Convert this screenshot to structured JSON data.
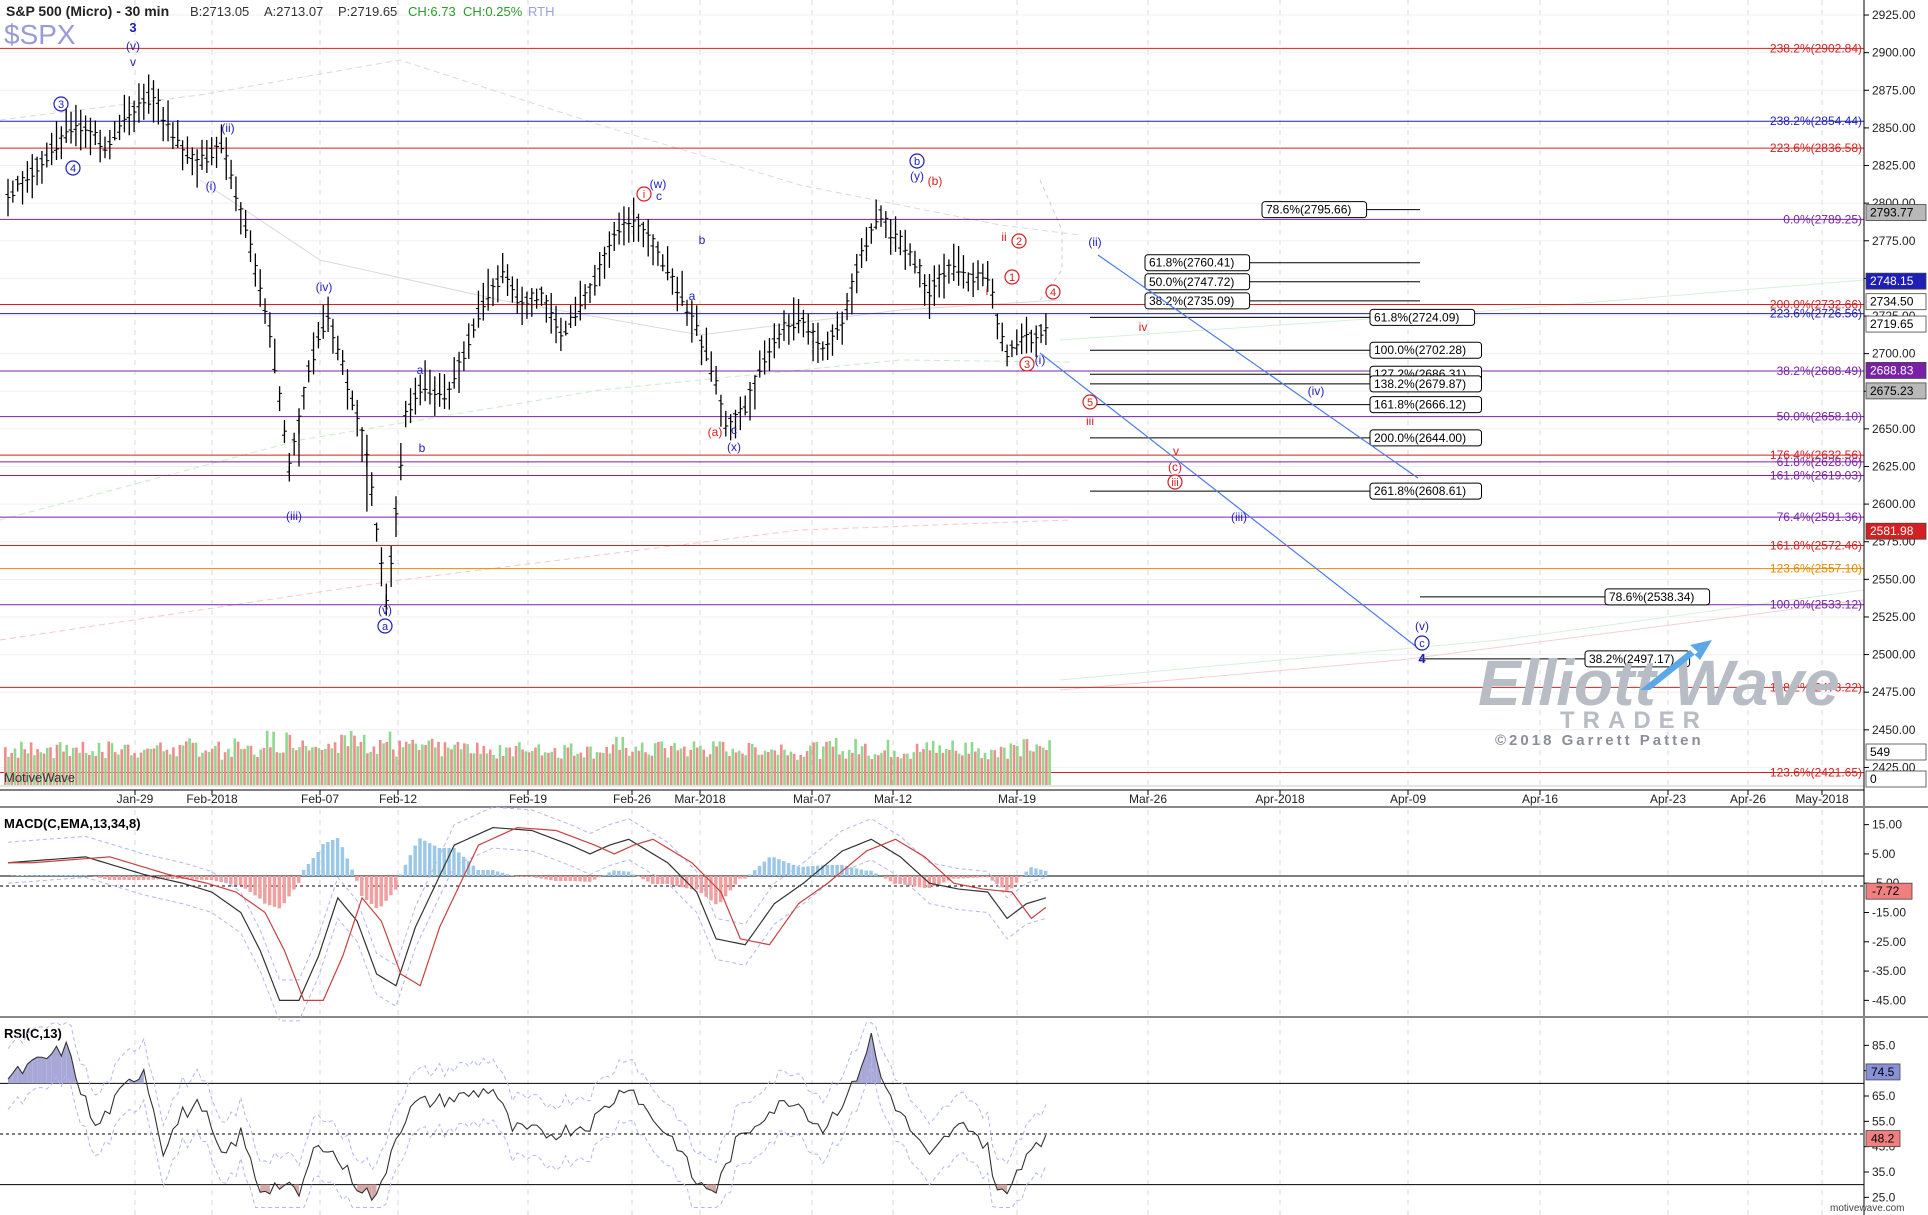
{
  "header": {
    "instrument": "S&P 500 (Micro) - 30 min",
    "bid": "B:2713.05",
    "ask": "A:2713.07",
    "price": "P:2719.65",
    "change": "CH:6.73",
    "change_pct": "CH:0.25%",
    "session": "RTH",
    "symbol": "$SPX"
  },
  "footer": {
    "provider": "MotiveWave",
    "site": "motivewave.com"
  },
  "watermark": {
    "brand_line1": "Elliott Wave",
    "brand_line2": "TRADER",
    "copyright": "©2018 Garrett Patten"
  },
  "colors": {
    "candle": "#000000",
    "blue": "#1f1fb8",
    "red": "#d42020",
    "purple": "#7a20a8",
    "orange": "#e88a00",
    "yellow": "#e8d000",
    "vol_red": "#f08c8c",
    "vol_green": "#90d890",
    "macd_up": "#9cc8e8",
    "macd_down": "#f0a0a0"
  },
  "chart_data": [
    {
      "type": "candlestick",
      "pane": "price",
      "ylim": [
        2410,
        2935
      ],
      "y_ticks": [
        "2925.00",
        "2900.00",
        "2875.00",
        "2850.00",
        "2825.00",
        "2800.00",
        "2775.00",
        "2750.00",
        "2725.00",
        "2700.00",
        "2675.00",
        "2650.00",
        "2625.00",
        "2600.00",
        "2575.00",
        "2550.00",
        "2525.00",
        "2500.00",
        "2475.00",
        "2450.00",
        "2425.00"
      ],
      "x_ticks": [
        "Jan-29",
        "Feb-2018",
        "Feb-07",
        "Feb-12",
        "Feb-19",
        "Feb-26",
        "Mar-2018",
        "Mar-07",
        "Mar-12",
        "Mar-19",
        "Mar-26",
        "Apr-2018",
        "Apr-09",
        "Apr-16",
        "Apr-23",
        "Apr-26",
        "May-2018"
      ],
      "price_path": [
        [
          0,
          2805
        ],
        [
          4,
          2832
        ],
        [
          7,
          2853
        ],
        [
          10,
          2838
        ],
        [
          13,
          2863
        ],
        [
          15,
          2872
        ],
        [
          16,
          2858
        ],
        [
          18,
          2835
        ],
        [
          20,
          2828
        ],
        [
          22,
          2838
        ],
        [
          23,
          2818
        ],
        [
          25,
          2770
        ],
        [
          27,
          2715
        ],
        [
          29,
          2625
        ],
        [
          31,
          2690
        ],
        [
          33,
          2726
        ],
        [
          35,
          2680
        ],
        [
          37,
          2635
        ],
        [
          39,
          2532
        ],
        [
          41,
          2660
        ],
        [
          43,
          2680
        ],
        [
          45,
          2668
        ],
        [
          47,
          2700
        ],
        [
          49,
          2735
        ],
        [
          51,
          2752
        ],
        [
          53,
          2733
        ],
        [
          55,
          2740
        ],
        [
          57,
          2712
        ],
        [
          60,
          2742
        ],
        [
          63,
          2784
        ],
        [
          65,
          2788
        ],
        [
          67,
          2768
        ],
        [
          69,
          2744
        ],
        [
          71,
          2716
        ],
        [
          73,
          2682
        ],
        [
          74,
          2652
        ],
        [
          76,
          2665
        ],
        [
          78,
          2698
        ],
        [
          80,
          2718
        ],
        [
          82,
          2722
        ],
        [
          84,
          2703
        ],
        [
          86,
          2720
        ],
        [
          88,
          2768
        ],
        [
          90,
          2793
        ],
        [
          91,
          2780
        ],
        [
          93,
          2768
        ],
        [
          95,
          2742
        ],
        [
          97,
          2758
        ],
        [
          99,
          2750
        ],
        [
          101,
          2752
        ],
        [
          102,
          2722
        ],
        [
          103,
          2700
        ],
        [
          104,
          2706
        ],
        [
          105,
          2712
        ],
        [
          106,
          2710
        ],
        [
          107,
          2719
        ]
      ],
      "volume_relative": "moderate, elevated mid-February",
      "annotations": [
        {
          "text": "3",
          "color": "blue",
          "bold": true
        },
        {
          "text": "(v)",
          "color": "blue"
        },
        {
          "text": "v",
          "color": "blue"
        },
        {
          "text": "3",
          "color": "blue",
          "circled": true
        },
        {
          "text": "4",
          "color": "blue",
          "circled": true
        },
        {
          "text": "(ii)",
          "color": "blue"
        },
        {
          "text": "(i)",
          "color": "blue"
        },
        {
          "text": "(iv)",
          "color": "blue"
        },
        {
          "text": "(iii)",
          "color": "blue"
        },
        {
          "text": "(v)",
          "color": "blue"
        },
        {
          "text": "a",
          "color": "blue",
          "circled": true
        },
        {
          "text": "a",
          "color": "blue"
        },
        {
          "text": "b",
          "color": "blue"
        },
        {
          "text": "(w)",
          "color": "blue"
        },
        {
          "text": "c",
          "color": "blue"
        },
        {
          "text": "i",
          "color": "red",
          "circled": true
        },
        {
          "text": "b",
          "color": "blue"
        },
        {
          "text": "a",
          "color": "blue"
        },
        {
          "text": "(a)",
          "color": "red"
        },
        {
          "text": "c",
          "color": "blue"
        },
        {
          "text": "(x)",
          "color": "blue"
        },
        {
          "text": "b",
          "color": "blue",
          "circled": true
        },
        {
          "text": "(y)",
          "color": "blue"
        },
        {
          "text": "(b)",
          "color": "red"
        },
        {
          "text": "ii",
          "color": "red"
        },
        {
          "text": "2",
          "color": "red",
          "circled": true
        },
        {
          "text": "1",
          "color": "red",
          "circled": true
        },
        {
          "text": "i",
          "color": "red"
        },
        {
          "text": "4",
          "color": "red",
          "circled": true
        },
        {
          "text": "3",
          "color": "red",
          "circled": true
        },
        {
          "text": "(i)",
          "color": "blue"
        },
        {
          "text": "(ii)",
          "color": "blue"
        },
        {
          "text": "iv",
          "color": "red"
        },
        {
          "text": "5",
          "color": "red",
          "circled": true
        },
        {
          "text": "iii",
          "color": "red"
        },
        {
          "text": "v",
          "color": "red"
        },
        {
          "text": "(c)",
          "color": "red"
        },
        {
          "text": "iii",
          "color": "red",
          "circled": true
        },
        {
          "text": "(iv)",
          "color": "blue"
        },
        {
          "text": "(iii)",
          "color": "blue"
        },
        {
          "text": "(v)",
          "color": "blue"
        },
        {
          "text": "c",
          "color": "blue",
          "circled": true
        },
        {
          "text": "4",
          "color": "blue",
          "bold": true
        }
      ],
      "fib_levels": [
        {
          "label": "238.2%(2902.84)",
          "value": 2902.84,
          "color": "red",
          "box": false
        },
        {
          "label": "238.2%(2854.44)",
          "value": 2854.44,
          "color": "blue",
          "box": false
        },
        {
          "label": "223.6%(2836.58)",
          "value": 2836.58,
          "color": "red",
          "box": false
        },
        {
          "label": "0.0%(2789.25)",
          "value": 2789.25,
          "color": "purple",
          "box": false
        },
        {
          "label": "200.0%(2732.66)",
          "value": 2732.66,
          "color": "red",
          "box": false
        },
        {
          "label": "223.6%(2726.56)",
          "value": 2726.56,
          "color": "blue",
          "box": false
        },
        {
          "label": "38.2%(2688.49)",
          "value": 2688.49,
          "color": "purple",
          "box": false
        },
        {
          "label": "50.0%(2658.10)",
          "value": 2658.1,
          "color": "purple",
          "box": false
        },
        {
          "label": "176.4%(2632.56)",
          "value": 2632.56,
          "color": "red",
          "box": false
        },
        {
          "label": "61.8%(2628.06)",
          "value": 2628.06,
          "color": "purple",
          "box": false
        },
        {
          "label": "161.8%(2619.03)",
          "value": 2619.03,
          "color": "purple",
          "box": false
        },
        {
          "label": "76.4%(2591.36)",
          "value": 2591.36,
          "color": "purple",
          "box": false
        },
        {
          "label": "161.8%(2572.46)",
          "value": 2572.46,
          "color": "red",
          "box": false
        },
        {
          "label": "123.6%(2557.10)",
          "value": 2557.1,
          "color": "orange",
          "box": false
        },
        {
          "label": "100.0%(2533.12)",
          "value": 2533.12,
          "color": "purple",
          "box": false
        },
        {
          "label": "138.2%(2478.22)",
          "value": 2478.22,
          "color": "red",
          "box": false
        },
        {
          "label": "123.6%(2421.65)",
          "value": 2421.65,
          "color": "red",
          "box": false
        },
        {
          "label": "78.6%(2795.66)",
          "value": 2795.66,
          "color": "black",
          "box": true
        },
        {
          "label": "61.8%(2760.41)",
          "value": 2760.41,
          "color": "black",
          "box": true
        },
        {
          "label": "50.0%(2747.72)",
          "value": 2747.72,
          "color": "black",
          "box": true
        },
        {
          "label": "38.2%(2735.09)",
          "value": 2735.09,
          "color": "black",
          "box": true
        },
        {
          "label": "61.8%(2724.09)",
          "value": 2724.09,
          "color": "black",
          "box": true
        },
        {
          "label": "100.0%(2702.28)",
          "value": 2702.28,
          "color": "black",
          "box": true
        },
        {
          "label": "127.2%(2686.31)",
          "value": 2686.31,
          "color": "black",
          "box": true
        },
        {
          "label": "138.2%(2679.87)",
          "value": 2679.87,
          "color": "black",
          "box": true
        },
        {
          "label": "161.8%(2666.12)",
          "value": 2666.12,
          "color": "black",
          "box": true
        },
        {
          "label": "200.0%(2644.00)",
          "value": 2644.0,
          "color": "black",
          "box": true
        },
        {
          "label": "261.8%(2608.61)",
          "value": 2608.61,
          "color": "black",
          "box": true
        },
        {
          "label": "78.6%(2538.34)",
          "value": 2538.34,
          "color": "black",
          "box": true
        },
        {
          "label": "38.2%(2497.17)",
          "value": 2497.17,
          "color": "black",
          "box": true
        }
      ],
      "price_markers": [
        {
          "label": "2793.77",
          "value": 2793.77,
          "bg": "#b8b8b8"
        },
        {
          "label": "2748.15",
          "value": 2748.15,
          "bg": "#1f1fb8"
        },
        {
          "label": "2734.50",
          "value": 2734.5,
          "bg": "#ffffff"
        },
        {
          "label": "2719.65",
          "value": 2719.65,
          "bg": "#ffffff"
        },
        {
          "label": "2688.83",
          "value": 2688.83,
          "bg": "#7a20a8"
        },
        {
          "label": "2675.23",
          "value": 2675.23,
          "bg": "#b8b8b8"
        },
        {
          "label": "2581.98",
          "value": 2581.98,
          "bg": "#d42020"
        },
        {
          "label": "549",
          "value": 549,
          "bg": "#ffffff"
        },
        {
          "label": "0",
          "value": 0,
          "bg": "#ffffff"
        }
      ]
    },
    {
      "type": "line",
      "pane": "macd",
      "title": "MACD(C,EMA,13,34,8)",
      "ylim": [
        -50,
        20
      ],
      "y_ticks": [
        "15.00",
        "5.00",
        "-5.00",
        "-15.00",
        "-25.00",
        "-35.00",
        "-45.00"
      ],
      "current_value": "-7.72",
      "path": [
        [
          0,
          2
        ],
        [
          8,
          4
        ],
        [
          14,
          -2
        ],
        [
          18,
          -5
        ],
        [
          21,
          -8
        ],
        [
          24,
          -15
        ],
        [
          26,
          -28
        ],
        [
          28,
          -45
        ],
        [
          30,
          -45
        ],
        [
          32,
          -30
        ],
        [
          34,
          -10
        ],
        [
          36,
          -18
        ],
        [
          38,
          -36
        ],
        [
          40,
          -40
        ],
        [
          42,
          -20
        ],
        [
          46,
          8
        ],
        [
          50,
          14
        ],
        [
          54,
          13
        ],
        [
          58,
          8
        ],
        [
          60,
          5
        ],
        [
          62,
          8
        ],
        [
          64,
          10
        ],
        [
          68,
          2
        ],
        [
          71,
          -8
        ],
        [
          73,
          -24
        ],
        [
          76,
          -26
        ],
        [
          79,
          -12
        ],
        [
          82,
          -5
        ],
        [
          86,
          6
        ],
        [
          89,
          10
        ],
        [
          92,
          4
        ],
        [
          95,
          -5
        ],
        [
          98,
          -7
        ],
        [
          101,
          -8
        ],
        [
          103,
          -17
        ],
        [
          105,
          -12
        ],
        [
          107,
          -10
        ]
      ]
    },
    {
      "type": "line",
      "pane": "rsi",
      "title": "RSI(C,13)",
      "ylim": [
        20,
        95
      ],
      "y_ticks": [
        "85.0",
        "75.0",
        "65.0",
        "55.0",
        "45.0",
        "35.0",
        "25.0"
      ],
      "levels": [
        70,
        50,
        30
      ],
      "current_values": [
        "74.5",
        "48.2"
      ],
      "path": [
        [
          0,
          72
        ],
        [
          3,
          78
        ],
        [
          6,
          84
        ],
        [
          9,
          52
        ],
        [
          12,
          68
        ],
        [
          14,
          76
        ],
        [
          16,
          44
        ],
        [
          18,
          58
        ],
        [
          20,
          62
        ],
        [
          22,
          40
        ],
        [
          24,
          50
        ],
        [
          26,
          28
        ],
        [
          28,
          30
        ],
        [
          30,
          26
        ],
        [
          32,
          48
        ],
        [
          34,
          40
        ],
        [
          36,
          30
        ],
        [
          38,
          24
        ],
        [
          40,
          50
        ],
        [
          42,
          62
        ],
        [
          46,
          64
        ],
        [
          50,
          68
        ],
        [
          52,
          52
        ],
        [
          56,
          50
        ],
        [
          60,
          54
        ],
        [
          64,
          70
        ],
        [
          66,
          58
        ],
        [
          69,
          46
        ],
        [
          71,
          30
        ],
        [
          73,
          28
        ],
        [
          75,
          46
        ],
        [
          78,
          58
        ],
        [
          81,
          64
        ],
        [
          84,
          52
        ],
        [
          87,
          68
        ],
        [
          89,
          88
        ],
        [
          90,
          72
        ],
        [
          92,
          58
        ],
        [
          95,
          40
        ],
        [
          97,
          50
        ],
        [
          99,
          54
        ],
        [
          101,
          44
        ],
        [
          102,
          28
        ],
        [
          103,
          25
        ],
        [
          104,
          36
        ],
        [
          106,
          48
        ],
        [
          107,
          48
        ]
      ]
    }
  ]
}
